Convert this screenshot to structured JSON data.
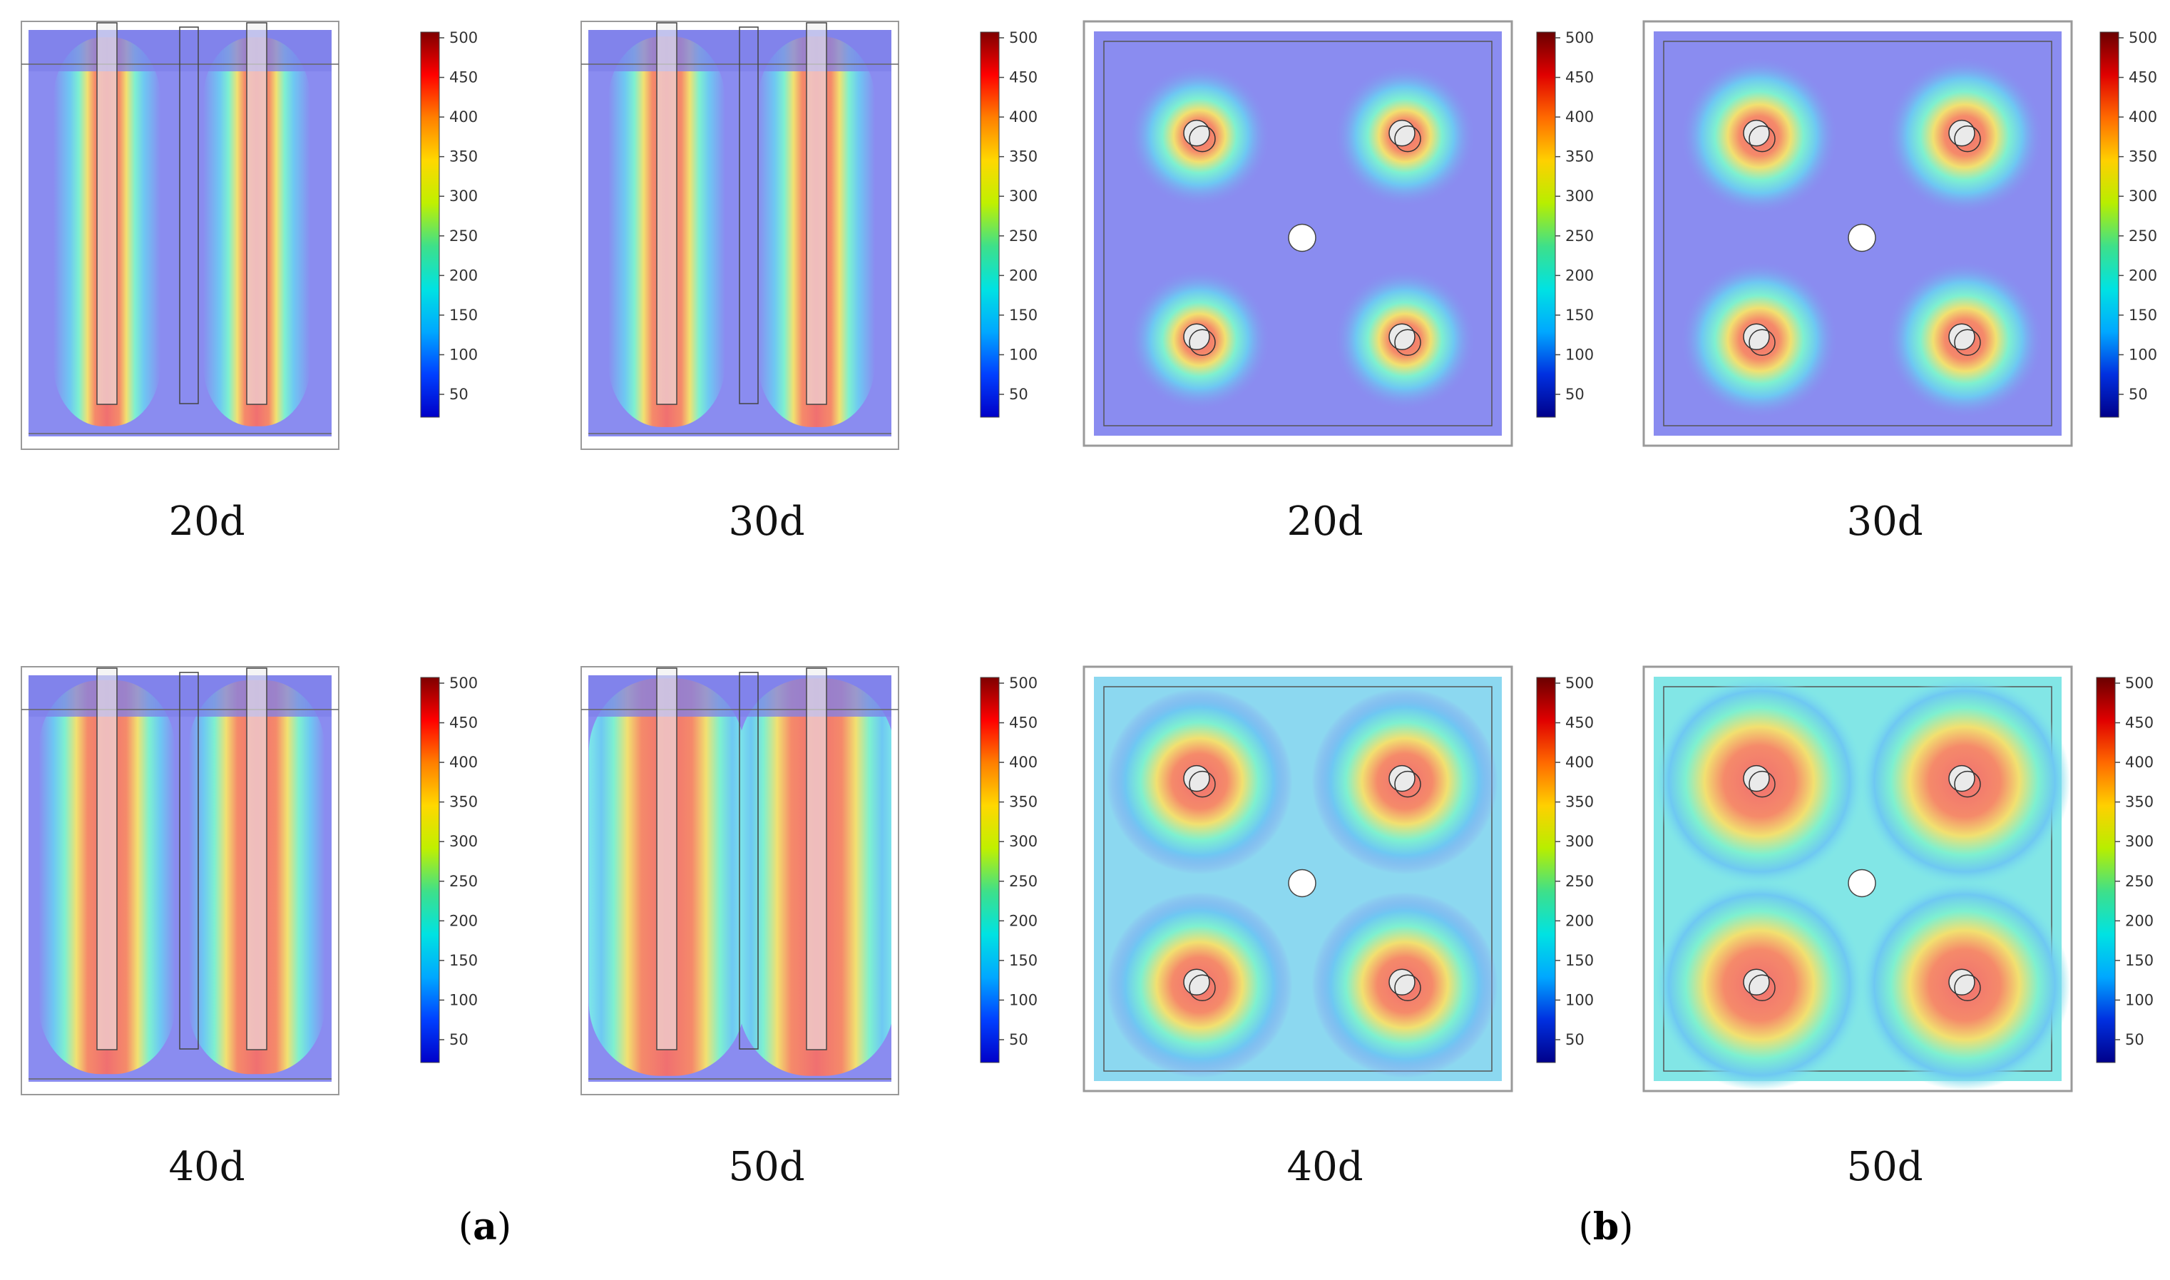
{
  "colorbar": {
    "ticks": [
      "500",
      "450",
      "400",
      "350",
      "300",
      "250",
      "200",
      "150",
      "100",
      "50"
    ],
    "gradient": [
      "#7f0000",
      "#ff0000",
      "#ff7f00",
      "#ffd800",
      "#c0f000",
      "#3ee08a",
      "#00e2e2",
      "#00a8ff",
      "#0040ff",
      "#0000c8"
    ],
    "gradient_b": [
      "#6a0000",
      "#e00000",
      "#ff6a00",
      "#ffd000",
      "#b8ee00",
      "#3ee08a",
      "#00e2e2",
      "#00a8ff",
      "#0030e0",
      "#00008a"
    ]
  },
  "panel_a": {
    "subfigures": [
      {
        "label": "20d",
        "spread": 0.18
      },
      {
        "label": "30d",
        "spread": 0.26
      },
      {
        "label": "40d",
        "spread": 0.42
      },
      {
        "label": "50d",
        "spread": 0.58
      }
    ],
    "caption_open": "(",
    "caption_letter": "a",
    "caption_close": ")"
  },
  "panel_b": {
    "subfigures": [
      {
        "label": "20d",
        "spread": 0.18
      },
      {
        "label": "30d",
        "spread": 0.28
      },
      {
        "label": "40d",
        "spread": 0.46
      },
      {
        "label": "50d",
        "spread": 0.62
      }
    ],
    "caption_open": "(",
    "caption_letter": "b",
    "caption_close": ")"
  },
  "colors": {
    "background_cold": "#8a8cf0",
    "frame": "#9a9a9a"
  }
}
